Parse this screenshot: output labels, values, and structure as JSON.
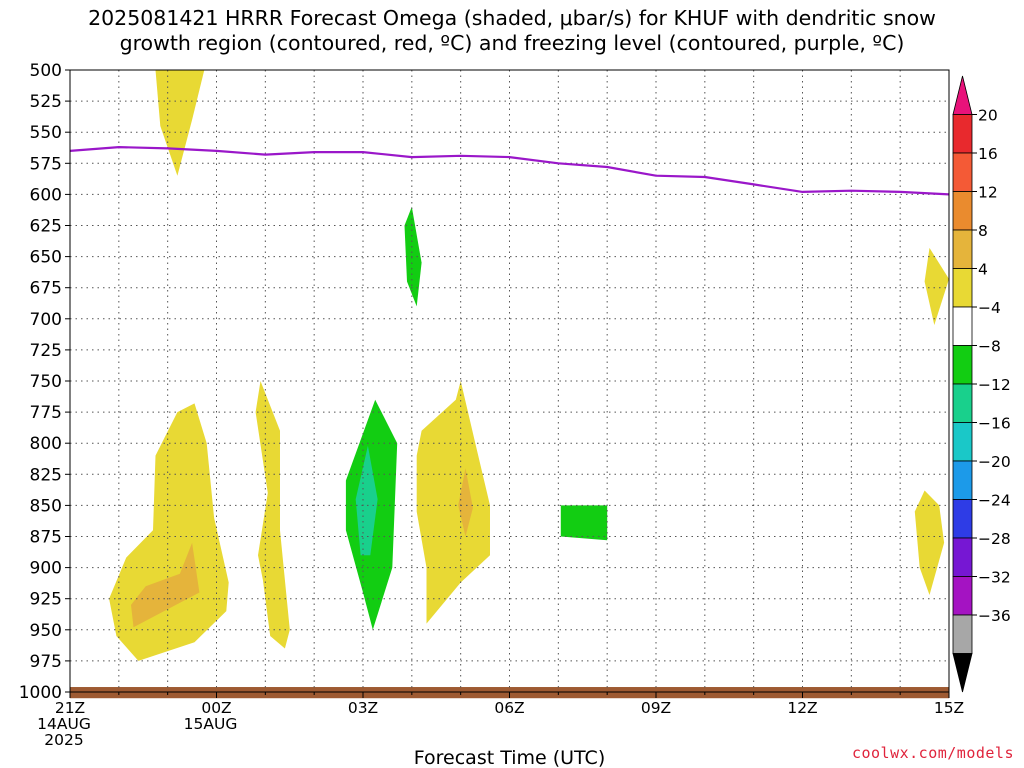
{
  "title": {
    "line1": "2025081421 HRRR Forecast Omega (shaded, μbar/s) for KHUF with dendritic snow",
    "line2": "growth region (contoured, red, ºC) and freezing level (contoured, purple, ºC)"
  },
  "watermark": "coolwx.com/models",
  "chart_data": {
    "type": "contour",
    "xlabel": "Forecast Time (UTC)",
    "ylabel": "",
    "x_hours_range": [
      0,
      18
    ],
    "y_pressure_range": [
      500,
      1000
    ],
    "y_ticks": [
      500,
      525,
      550,
      575,
      600,
      625,
      650,
      675,
      700,
      725,
      750,
      775,
      800,
      825,
      850,
      875,
      900,
      925,
      950,
      975,
      1000
    ],
    "x_ticks": [
      {
        "hour": 0,
        "lines": [
          "21Z",
          "14AUG",
          "2025"
        ]
      },
      {
        "hour": 3,
        "lines": [
          "00Z",
          "15AUG"
        ]
      },
      {
        "hour": 6,
        "lines": [
          "03Z"
        ]
      },
      {
        "hour": 9,
        "lines": [
          "06Z"
        ]
      },
      {
        "hour": 12,
        "lines": [
          "09Z"
        ]
      },
      {
        "hour": 15,
        "lines": [
          "12Z"
        ]
      },
      {
        "hour": 18,
        "lines": [
          "15Z"
        ]
      }
    ],
    "grid": true,
    "colorbar": {
      "placement": "right",
      "labels": [
        "20",
        "16",
        "12",
        "8",
        "4",
        "-4",
        "-8",
        "-12",
        "-16",
        "-20",
        "-24",
        "-28",
        "-32",
        "-36"
      ],
      "bins": [
        {
          "color": "#e8127a"
        },
        {
          "color": "#e8292d"
        },
        {
          "color": "#f45a36"
        },
        {
          "color": "#ea8b2e"
        },
        {
          "color": "#e5b43b"
        },
        {
          "color": "#e8d934"
        },
        {
          "color": "#ffffff"
        },
        {
          "color": "#12cd12"
        },
        {
          "color": "#19d08c"
        },
        {
          "color": "#1ac8c8"
        },
        {
          "color": "#1c9ae9"
        },
        {
          "color": "#2e3ce6"
        },
        {
          "color": "#7617d3"
        },
        {
          "color": "#a413c2"
        },
        {
          "color": "#a7a7a7"
        },
        {
          "color": "#000000"
        }
      ]
    },
    "freezing_level": {
      "color": "#9a17c9",
      "points": [
        [
          0,
          565
        ],
        [
          1,
          562
        ],
        [
          2,
          563
        ],
        [
          3,
          565
        ],
        [
          4,
          568
        ],
        [
          5,
          566
        ],
        [
          6,
          566
        ],
        [
          7,
          570
        ],
        [
          8,
          569
        ],
        [
          9,
          570
        ],
        [
          10,
          575
        ],
        [
          11,
          578
        ],
        [
          12,
          585
        ],
        [
          13,
          586
        ],
        [
          14,
          592
        ],
        [
          15,
          598
        ],
        [
          16,
          597
        ],
        [
          17,
          598
        ],
        [
          18,
          600
        ]
      ]
    },
    "omega_regions": [
      {
        "level": "4",
        "color": "#e8d934",
        "points": [
          [
            1.75,
            500
          ],
          [
            2.75,
            500
          ],
          [
            2.5,
            540
          ],
          [
            2.2,
            585
          ],
          [
            1.85,
            545
          ]
        ]
      },
      {
        "level": "4",
        "color": "#e8d934",
        "points": [
          [
            17.6,
            643
          ],
          [
            18.0,
            668
          ],
          [
            17.7,
            705
          ],
          [
            17.5,
            670
          ]
        ]
      },
      {
        "level": "4",
        "color": "#e8d934",
        "points": [
          [
            2.2,
            775
          ],
          [
            2.55,
            768
          ],
          [
            2.8,
            800
          ],
          [
            2.95,
            860
          ],
          [
            3.25,
            912
          ],
          [
            3.2,
            935
          ],
          [
            2.55,
            960
          ],
          [
            1.4,
            975
          ],
          [
            0.95,
            955
          ],
          [
            0.8,
            925
          ],
          [
            1.15,
            892
          ],
          [
            1.7,
            870
          ],
          [
            1.75,
            810
          ]
        ]
      },
      {
        "level": "4",
        "color": "#e8d934",
        "points": [
          [
            3.9,
            750
          ],
          [
            4.3,
            790
          ],
          [
            4.3,
            870
          ],
          [
            4.5,
            950
          ],
          [
            4.4,
            965
          ],
          [
            4.1,
            955
          ],
          [
            3.95,
            910
          ],
          [
            3.85,
            890
          ],
          [
            4.05,
            840
          ],
          [
            3.8,
            775
          ]
        ]
      },
      {
        "level": "4",
        "color": "#e8d934",
        "points": [
          [
            7.2,
            790
          ],
          [
            7.9,
            765
          ],
          [
            8.0,
            750
          ],
          [
            8.3,
            800
          ],
          [
            8.6,
            850
          ],
          [
            8.6,
            890
          ],
          [
            8.0,
            912
          ],
          [
            7.3,
            945
          ],
          [
            7.3,
            900
          ],
          [
            7.1,
            855
          ],
          [
            7.1,
            810
          ]
        ]
      },
      {
        "level": "4",
        "color": "#e8d934",
        "points": [
          [
            17.5,
            838
          ],
          [
            17.8,
            850
          ],
          [
            17.9,
            880
          ],
          [
            17.6,
            922
          ],
          [
            17.4,
            900
          ],
          [
            17.3,
            855
          ]
        ]
      },
      {
        "level": "8",
        "color": "#e5b43b",
        "points": [
          [
            2.5,
            880
          ],
          [
            2.65,
            920
          ],
          [
            1.3,
            948
          ],
          [
            1.25,
            930
          ],
          [
            1.55,
            915
          ],
          [
            2.25,
            905
          ]
        ]
      },
      {
        "level": "8",
        "color": "#e5b43b",
        "points": [
          [
            8.1,
            820
          ],
          [
            8.25,
            852
          ],
          [
            8.1,
            875
          ],
          [
            7.95,
            850
          ]
        ]
      },
      {
        "level": "-4",
        "color": "#12cd12",
        "points": [
          [
            6.25,
            765
          ],
          [
            6.7,
            800
          ],
          [
            6.6,
            900
          ],
          [
            6.2,
            950
          ],
          [
            6.0,
            920
          ],
          [
            5.65,
            870
          ],
          [
            5.65,
            830
          ]
        ]
      },
      {
        "level": "-8",
        "color": "#19d08c",
        "points": [
          [
            6.1,
            802
          ],
          [
            6.3,
            845
          ],
          [
            6.15,
            890
          ],
          [
            5.95,
            890
          ],
          [
            5.85,
            845
          ]
        ]
      },
      {
        "level": "-4",
        "color": "#12cd12",
        "points": [
          [
            7.0,
            610
          ],
          [
            7.2,
            655
          ],
          [
            7.1,
            690
          ],
          [
            6.9,
            670
          ],
          [
            6.85,
            625
          ]
        ]
      },
      {
        "level": "-4",
        "color": "#12cd12",
        "points": [
          [
            10.05,
            850
          ],
          [
            11.0,
            850
          ],
          [
            11.0,
            878
          ],
          [
            10.05,
            875
          ]
        ]
      }
    ],
    "surface_band": {
      "color": "#9e5a32",
      "y_range": [
        996,
        1005
      ]
    }
  }
}
